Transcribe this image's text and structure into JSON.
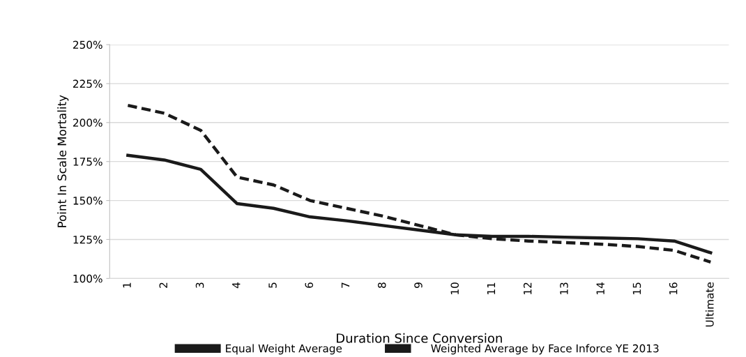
{
  "chart_data": {
    "type": "line",
    "xlabel": "Duration Since Conversion",
    "ylabel": "Point In Scale Mortality",
    "categories": [
      "1",
      "2",
      "3",
      "4",
      "5",
      "6",
      "7",
      "8",
      "9",
      "10",
      "11",
      "12",
      "13",
      "14",
      "15",
      "16",
      "Ultimate"
    ],
    "series": [
      {
        "name": "Equal Weight Average",
        "color": "#1a1a1a",
        "line_style": "solid",
        "values": [
          179,
          176,
          170,
          148,
          145,
          139.5,
          137,
          134,
          131,
          128,
          127,
          127,
          126.5,
          126,
          125.5,
          124,
          116.5
        ]
      },
      {
        "name": "Weighted Average by Face Inforce YE 2013",
        "color": "#1a1a1a",
        "line_style": "dashed",
        "values": [
          211,
          206,
          195,
          165,
          160,
          150,
          145,
          140,
          134,
          128,
          125.5,
          124,
          123,
          122,
          120.5,
          118,
          110.5
        ]
      }
    ],
    "ylim": [
      100,
      250
    ],
    "yticks": [
      {
        "value": 100,
        "label": "100%"
      },
      {
        "value": 125,
        "label": "125%"
      },
      {
        "value": 150,
        "label": "150%"
      },
      {
        "value": 175,
        "label": "175%"
      },
      {
        "value": 200,
        "label": "200%"
      },
      {
        "value": 225,
        "label": "225%"
      },
      {
        "value": 250,
        "label": "250%"
      }
    ],
    "grid": "y",
    "legend": "bottom",
    "marker": "none"
  }
}
